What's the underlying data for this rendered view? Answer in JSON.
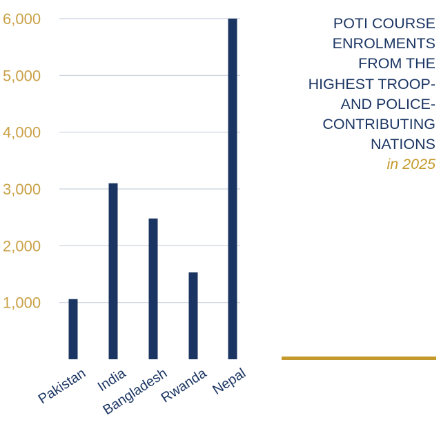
{
  "chart_data": {
    "type": "bar",
    "categories": [
      "Pakistan",
      "India",
      "Bangladesh",
      "Rwanda",
      "Nepal"
    ],
    "values": [
      1060,
      3100,
      2480,
      1530,
      6000
    ],
    "ylim": [
      0,
      6000
    ],
    "yticks": [
      "1,000",
      "2,000",
      "3,000",
      "4,000",
      "5,000",
      "6,000"
    ],
    "grid": true,
    "title_lines": [
      "POTI COURSE",
      "ENROLMENTS",
      "FROM THE",
      "HIGHEST TROOP-",
      "AND POLICE-",
      "CONTRIBUTING",
      "NATIONS"
    ],
    "subtitle": "in 2025"
  },
  "colors": {
    "bar": "#1b3563",
    "tick_label": "#c9a046",
    "title": "#1b3563",
    "subtitle": "#c49a2c",
    "grid": "#c8d0dc",
    "accent_rule": "#c49a2c",
    "category_label": "#1b3563"
  }
}
